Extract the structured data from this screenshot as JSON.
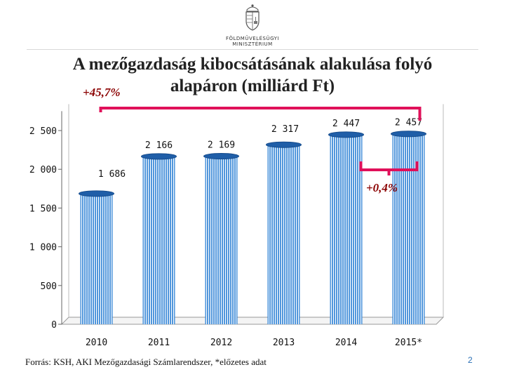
{
  "header": {
    "logo_line1": "FÖLDMŰVELÉSÜGYI",
    "logo_line2": "MINISZTÉRIUM"
  },
  "title_line1": "A mezőgazdaság kibocsátásának alakulása folyó",
  "title_line2": "alapáron (milliárd Ft)",
  "footer": "Forrás: KSH, AKI Mezőgazdasági Számlarendszer, *előzetes adat",
  "page_number": "2",
  "colors": {
    "bar": "#3d8bd8",
    "bar_top": "#1f5ea8",
    "bracket": "#e0105a",
    "annotation": "#8b0000"
  },
  "chart_data": {
    "type": "bar",
    "categories": [
      "2010",
      "2011",
      "2012",
      "2013",
      "2014",
      "2015*"
    ],
    "values": [
      1686,
      2166,
      2169,
      2317,
      2447,
      2457
    ],
    "value_labels": [
      "1 686",
      "2 166",
      "2 169",
      "2 317",
      "2 447",
      "2 457"
    ],
    "yticks": [
      0,
      500,
      1000,
      1500,
      2000,
      2500
    ],
    "ytick_labels": [
      "0",
      "500",
      "1 000",
      "1 500",
      "2 000",
      "2 500"
    ],
    "ylim": [
      0,
      2750
    ],
    "grid": false,
    "annotations": [
      {
        "text": "+45,7%",
        "from": "2010",
        "to": "2015*"
      },
      {
        "text": "+0,4%",
        "from": "2014",
        "to": "2015*"
      }
    ]
  }
}
